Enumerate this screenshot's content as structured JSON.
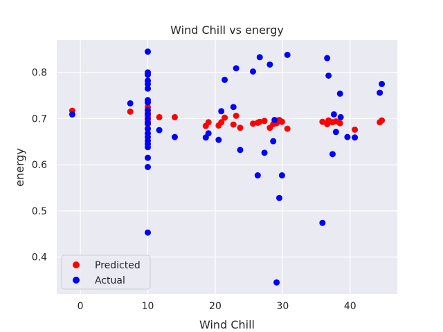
{
  "chart_data": {
    "type": "scatter",
    "title": "Wind Chill vs energy",
    "xlabel": "Wind Chill",
    "ylabel": "energy",
    "xlim": [
      -3.5,
      47
    ],
    "ylim": [
      0.32,
      0.87
    ],
    "xticks": [
      0,
      10,
      20,
      30,
      40
    ],
    "yticks": [
      0.4,
      0.5,
      0.6,
      0.7,
      0.8
    ],
    "grid": true,
    "legend_position": "lower-left",
    "series": [
      {
        "name": "Predicted",
        "color": "#ff0000",
        "points": [
          [
            -1.2,
            0.717
          ],
          [
            7.4,
            0.715
          ],
          [
            10,
            0.725
          ],
          [
            10,
            0.718
          ],
          [
            10,
            0.712
          ],
          [
            10,
            0.706
          ],
          [
            10,
            0.7
          ],
          [
            10,
            0.694
          ],
          [
            10,
            0.688
          ],
          [
            11.7,
            0.703
          ],
          [
            14,
            0.703
          ],
          [
            18.6,
            0.684
          ],
          [
            19.0,
            0.692
          ],
          [
            20.5,
            0.685
          ],
          [
            20.9,
            0.692
          ],
          [
            21.4,
            0.702
          ],
          [
            22.7,
            0.687
          ],
          [
            23.1,
            0.706
          ],
          [
            23.7,
            0.68
          ],
          [
            25.6,
            0.689
          ],
          [
            26.3,
            0.691
          ],
          [
            26.6,
            0.693
          ],
          [
            27.3,
            0.695
          ],
          [
            28.1,
            0.68
          ],
          [
            28.6,
            0.688
          ],
          [
            29.1,
            0.69
          ],
          [
            29.5,
            0.697
          ],
          [
            29.9,
            0.693
          ],
          [
            30.7,
            0.678
          ],
          [
            35.9,
            0.693
          ],
          [
            36.6,
            0.688
          ],
          [
            36.8,
            0.696
          ],
          [
            37.4,
            0.692
          ],
          [
            37.9,
            0.694
          ],
          [
            38.5,
            0.69
          ],
          [
            40.7,
            0.676
          ],
          [
            44.4,
            0.692
          ],
          [
            44.7,
            0.696
          ]
        ]
      },
      {
        "name": "Actual",
        "color": "#0000ff",
        "points": [
          [
            -1.2,
            0.709
          ],
          [
            7.4,
            0.733
          ],
          [
            10,
            0.845
          ],
          [
            10,
            0.8
          ],
          [
            10,
            0.795
          ],
          [
            10,
            0.782
          ],
          [
            10,
            0.775
          ],
          [
            10,
            0.765
          ],
          [
            10,
            0.74
          ],
          [
            10,
            0.735
          ],
          [
            10,
            0.718
          ],
          [
            10,
            0.71
          ],
          [
            10,
            0.7
          ],
          [
            10,
            0.69
          ],
          [
            10,
            0.678
          ],
          [
            10,
            0.668
          ],
          [
            10,
            0.66
          ],
          [
            10,
            0.652
          ],
          [
            10,
            0.645
          ],
          [
            10,
            0.638
          ],
          [
            10,
            0.615
          ],
          [
            10,
            0.595
          ],
          [
            10,
            0.453
          ],
          [
            11.7,
            0.675
          ],
          [
            14,
            0.66
          ],
          [
            18.6,
            0.659
          ],
          [
            19.0,
            0.668
          ],
          [
            20.5,
            0.654
          ],
          [
            20.9,
            0.716
          ],
          [
            21.4,
            0.784
          ],
          [
            22.7,
            0.725
          ],
          [
            23.1,
            0.809
          ],
          [
            23.7,
            0.632
          ],
          [
            25.6,
            0.802
          ],
          [
            26.3,
            0.577
          ],
          [
            26.6,
            0.833
          ],
          [
            27.3,
            0.626
          ],
          [
            28.1,
            0.817
          ],
          [
            28.6,
            0.651
          ],
          [
            28.8,
            0.697
          ],
          [
            29.1,
            0.345
          ],
          [
            29.5,
            0.528
          ],
          [
            29.9,
            0.577
          ],
          [
            30.7,
            0.838
          ],
          [
            35.9,
            0.474
          ],
          [
            36.6,
            0.831
          ],
          [
            36.8,
            0.793
          ],
          [
            37.4,
            0.623
          ],
          [
            37.6,
            0.709
          ],
          [
            37.9,
            0.671
          ],
          [
            38.5,
            0.754
          ],
          [
            38.6,
            0.703
          ],
          [
            39.6,
            0.66
          ],
          [
            40.7,
            0.659
          ],
          [
            44.4,
            0.756
          ],
          [
            44.7,
            0.775
          ]
        ]
      }
    ]
  }
}
